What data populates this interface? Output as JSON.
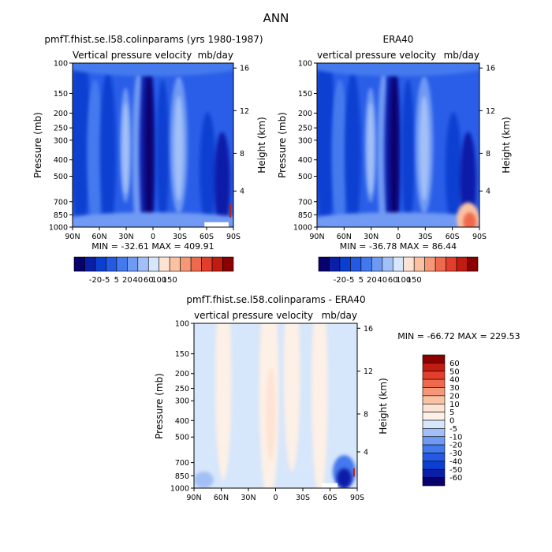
{
  "figure": {
    "title": "ANN"
  },
  "chart_data": [
    {
      "type": "heatmap",
      "title": "pmfT.fhist.se.l58.colinparams (yrs 1980-1987)",
      "subtitle_left": "Vertical pressure velocity",
      "subtitle_right": "mb/day",
      "ylabel": "Pressure (mb)",
      "ylabel_right": "Height (km)",
      "x_ticks": [
        "90N",
        "60N",
        "30N",
        "0",
        "30S",
        "60S",
        "90S"
      ],
      "y_ticks": [
        "100",
        "150",
        "200",
        "250",
        "300",
        "400",
        "500",
        "700",
        "850",
        "1000"
      ],
      "y_right_ticks": [
        "16",
        "12",
        "8",
        "4"
      ],
      "stats": "MIN = -32.61   MAX = 409.91",
      "x_range": [
        "90N",
        "90S"
      ],
      "y_range": [
        1000,
        100
      ]
    },
    {
      "type": "heatmap",
      "title": "ERA40",
      "subtitle_left": "vertical pressure velocity",
      "subtitle_right": "mb/day",
      "ylabel": "Pressure (mb)",
      "ylabel_right": "Height (km)",
      "x_ticks": [
        "90N",
        "60N",
        "30N",
        "0",
        "30S",
        "60S",
        "90S"
      ],
      "y_ticks": [
        "100",
        "150",
        "200",
        "250",
        "300",
        "400",
        "500",
        "700",
        "850",
        "1000"
      ],
      "y_right_ticks": [
        "16",
        "12",
        "8",
        "4"
      ],
      "stats": "MIN = -36.78   MAX = 86.44",
      "x_range": [
        "90N",
        "90S"
      ],
      "y_range": [
        1000,
        100
      ]
    },
    {
      "type": "heatmap",
      "title": "pmfT.fhist.se.l58.colinparams - ERA40",
      "subtitle_left": "vertical pressure velocity",
      "subtitle_right": "mb/day",
      "ylabel": "Pressure (mb)",
      "ylabel_right": "Height (km)",
      "x_ticks": [
        "90N",
        "60N",
        "30N",
        "0",
        "30S",
        "60S",
        "90S"
      ],
      "y_ticks": [
        "100",
        "150",
        "200",
        "250",
        "300",
        "400",
        "500",
        "700",
        "850",
        "1000"
      ],
      "y_right_ticks": [
        "16",
        "12",
        "8",
        "4"
      ],
      "stats": "MIN = -66.72   MAX = 229.53",
      "x_range": [
        "90N",
        "90S"
      ],
      "y_range": [
        1000,
        100
      ]
    }
  ],
  "colorbar_top": {
    "labels": [
      "-20",
      "-5",
      "5",
      "20",
      "40",
      "60",
      "100",
      "150"
    ],
    "colors": [
      "#08006b",
      "#0a1fa8",
      "#0b3fd1",
      "#2459e4",
      "#4479ee",
      "#6f9af3",
      "#a3bff7",
      "#d6e6fb",
      "#fde3d3",
      "#fbc1a3",
      "#f69877",
      "#ef6a4c",
      "#e13e2b",
      "#c21c12",
      "#8b0000"
    ]
  },
  "colorbar_diff": {
    "labels": [
      "60",
      "50",
      "40",
      "30",
      "20",
      "10",
      "5",
      "0",
      "-5",
      "-10",
      "-20",
      "-30",
      "-40",
      "-50",
      "-60"
    ],
    "colors": [
      "#8b0000",
      "#c21c12",
      "#e13e2b",
      "#ef6a4c",
      "#f69877",
      "#fbc1a3",
      "#fde3d3",
      "#fdf0e6",
      "#d6e6fb",
      "#a3bff7",
      "#6f9af3",
      "#4479ee",
      "#2459e4",
      "#0b3fd1",
      "#0a1fa8",
      "#08006b"
    ]
  }
}
